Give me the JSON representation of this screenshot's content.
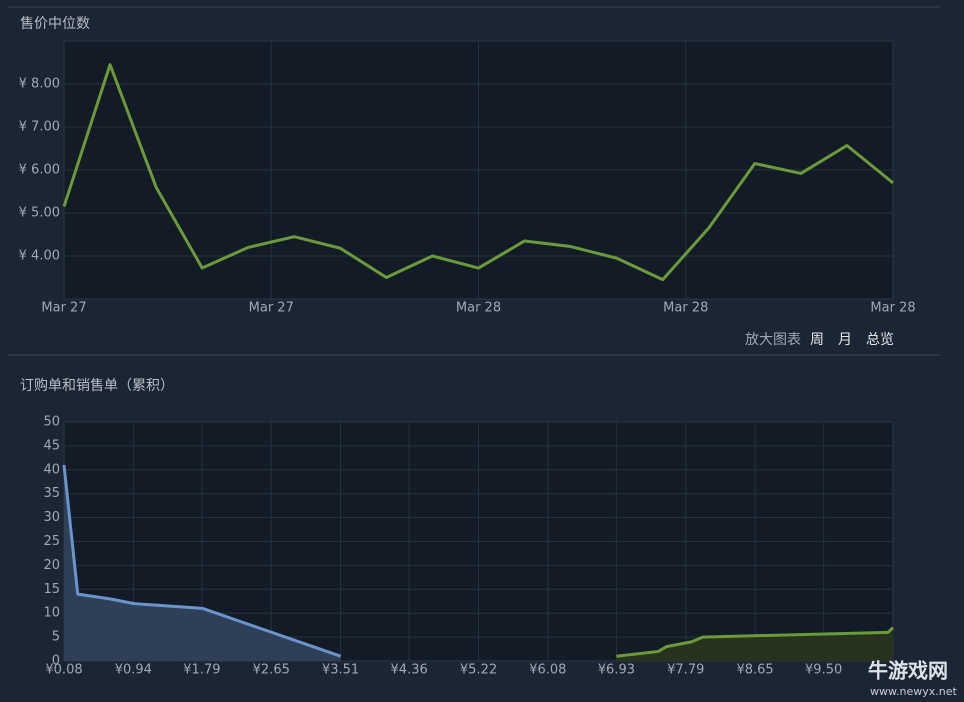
{
  "chart_data": [
    {
      "type": "line",
      "title": "售价中位数",
      "x": [
        0,
        1,
        2,
        3,
        4,
        5,
        6,
        7,
        8,
        9,
        10,
        11,
        12,
        13,
        14,
        15,
        16,
        17,
        18
      ],
      "values": [
        5.15,
        8.45,
        5.6,
        3.72,
        4.2,
        4.45,
        4.18,
        3.5,
        4.0,
        3.72,
        4.35,
        4.22,
        3.95,
        3.45,
        4.65,
        6.15,
        5.92,
        6.57,
        5.7
      ],
      "color": "#6a9a3a",
      "xlim": [
        0,
        18
      ],
      "xticks": [
        {
          "value": 0,
          "label": "Mar 27"
        },
        {
          "value": 4.5,
          "label": "Mar 27"
        },
        {
          "value": 9,
          "label": "Mar 28"
        },
        {
          "value": 13.5,
          "label": "Mar 28"
        },
        {
          "value": 18,
          "label": "Mar 28"
        }
      ],
      "ylim": [
        3,
        9
      ],
      "yticks": [
        {
          "value": 4,
          "label": "¥ 4.00"
        },
        {
          "value": 5,
          "label": "¥ 5.00"
        },
        {
          "value": 6,
          "label": "¥ 6.00"
        },
        {
          "value": 7,
          "label": "¥ 7.00"
        },
        {
          "value": 8,
          "label": "¥ 8.00"
        }
      ],
      "grid": true
    },
    {
      "type": "area",
      "title": "订购单和销售单（累积）",
      "series": [
        {
          "color": "#6b93cc",
          "fill": "#2f3f58",
          "x": [
            0.08,
            0.25,
            0.65,
            0.95,
            1.8,
            3.51
          ],
          "values": [
            41,
            14,
            13,
            12,
            11,
            1
          ]
        },
        {
          "color": "#6a9a3a",
          "fill": "#27331f",
          "x": [
            6.93,
            7.45,
            7.55,
            7.86,
            8.0,
            10.3,
            10.36
          ],
          "values": [
            1,
            2,
            3,
            4,
            5,
            6,
            7
          ]
        }
      ],
      "xlim": [
        0.08,
        10.36
      ],
      "xticks": [
        {
          "value": 0.08,
          "label": "¥0.08"
        },
        {
          "value": 0.94,
          "label": "¥0.94"
        },
        {
          "value": 1.79,
          "label": "¥1.79"
        },
        {
          "value": 2.65,
          "label": "¥2.65"
        },
        {
          "value": 3.51,
          "label": "¥3.51"
        },
        {
          "value": 4.36,
          "label": "¥4.36"
        },
        {
          "value": 5.22,
          "label": "¥5.22"
        },
        {
          "value": 6.08,
          "label": "¥6.08"
        },
        {
          "value": 6.93,
          "label": "¥6.93"
        },
        {
          "value": 7.79,
          "label": "¥7.79"
        },
        {
          "value": 8.65,
          "label": "¥8.65"
        },
        {
          "value": 9.5,
          "label": "¥9.50"
        }
      ],
      "ylim": [
        0,
        50
      ],
      "yticks": [
        0,
        5,
        10,
        15,
        20,
        25,
        30,
        35,
        40,
        45,
        50
      ],
      "grid": true
    }
  ],
  "controls": {
    "zoom": "放大图表",
    "week": "周",
    "month": "月",
    "all": "总览"
  },
  "watermark": {
    "name": "牛游戏网",
    "url": "www.newyx.net"
  }
}
